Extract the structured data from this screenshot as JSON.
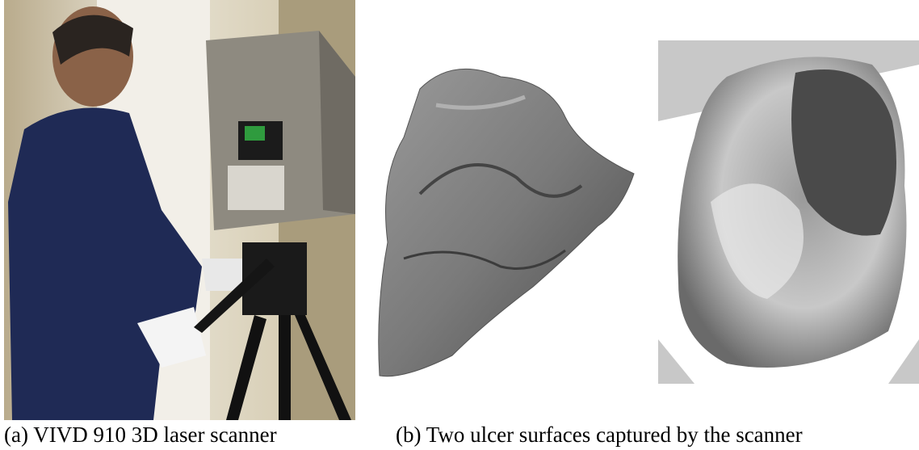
{
  "figure": {
    "panels": [
      {
        "caption": "(a) VIVD 910 3D laser scanner"
      },
      {
        "caption": "(b) Two ulcer surfaces captured by the scanner"
      }
    ]
  }
}
